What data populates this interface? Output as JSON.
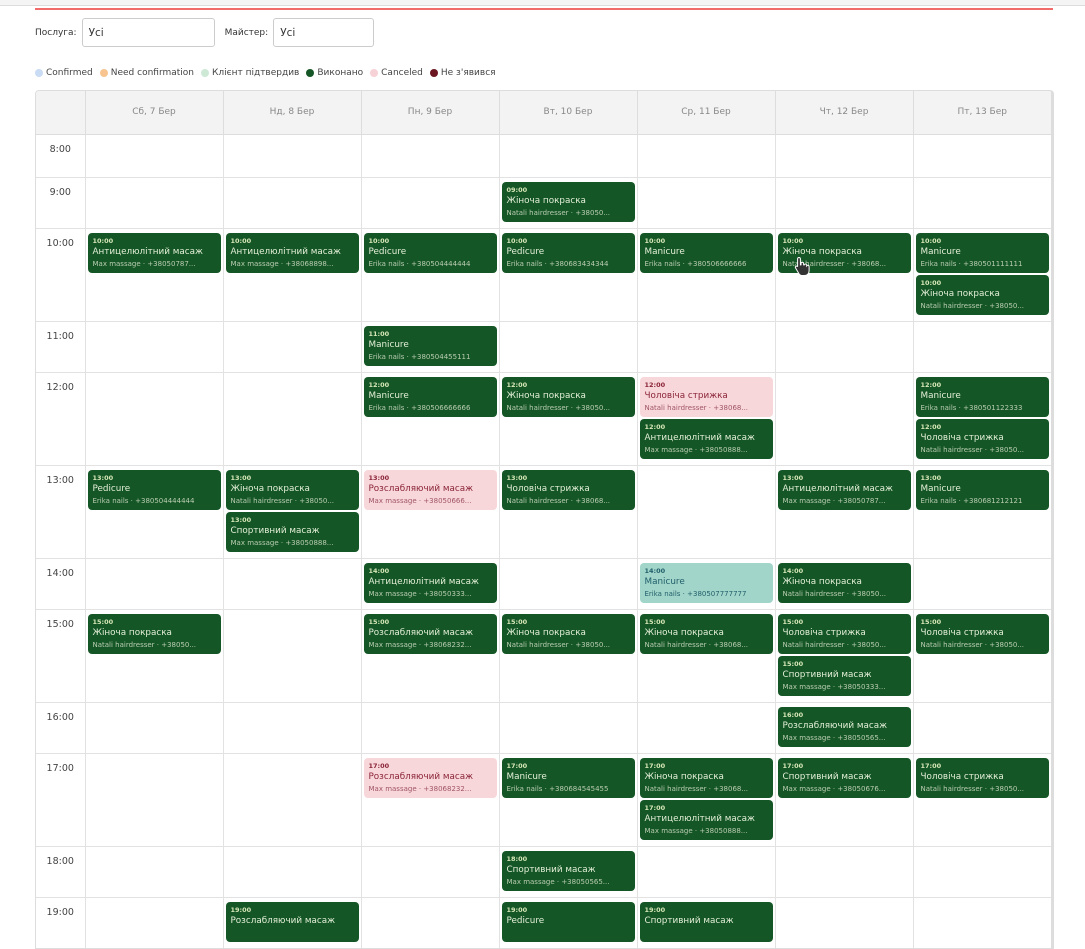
{
  "filters": {
    "service_label": "Послуга:",
    "service_value": "Усі",
    "master_label": "Майстер:",
    "master_value": "Усі"
  },
  "legend": [
    {
      "label": "Confirmed",
      "color": "#c9dcf3"
    },
    {
      "label": "Need confirmation",
      "color": "#f7c48f"
    },
    {
      "label": "Клієнт підтвердив",
      "color": "#cde9d6"
    },
    {
      "label": "Виконано",
      "color": "#155626"
    },
    {
      "label": "Canceled",
      "color": "#f6d1d6"
    },
    {
      "label": "Не з'явився",
      "color": "#6b1620"
    }
  ],
  "days": [
    "Сб, 7 Бер",
    "Нд, 8 Бер",
    "Пн, 9 Бер",
    "Вт, 10 Бер",
    "Ср, 11 Бер",
    "Чт, 12 Бер",
    "Пт, 13 Бер"
  ],
  "rows": [
    {
      "time": "8:00",
      "cells": [
        [],
        [],
        [],
        [],
        [],
        [],
        []
      ]
    },
    {
      "time": "9:00",
      "cells": [
        [],
        [],
        [],
        [
          {
            "time": "09:00",
            "title": "Жіноча покраска",
            "sub": "Natali hairdresser · +38050...",
            "status": "done"
          }
        ],
        [],
        [],
        []
      ]
    },
    {
      "time": "10:00",
      "cells": [
        [
          {
            "time": "10:00",
            "title": "Антицелюлітний масаж",
            "sub": "Max massage · +38050787...",
            "status": "done"
          }
        ],
        [
          {
            "time": "10:00",
            "title": "Антицелюлітний масаж",
            "sub": "Max massage · +38068898...",
            "status": "done"
          }
        ],
        [
          {
            "time": "10:00",
            "title": "Pedicure",
            "sub": "Erika nails · +380504444444",
            "status": "done"
          }
        ],
        [
          {
            "time": "10:00",
            "title": "Pedicure",
            "sub": "Erika nails · +380683434344",
            "status": "done"
          }
        ],
        [
          {
            "time": "10:00",
            "title": "Manicure",
            "sub": "Erika nails · +380506666666",
            "status": "done"
          }
        ],
        [
          {
            "time": "10:00",
            "title": "Жіноча покраска",
            "sub": "Natali hairdresser · +38068...",
            "status": "done"
          }
        ],
        [
          {
            "time": "10:00",
            "title": "Manicure",
            "sub": "Erika nails · +380501111111",
            "status": "done"
          },
          {
            "time": "10:00",
            "title": "Жіноча покраска",
            "sub": "Natali hairdresser · +38050...",
            "status": "done"
          }
        ]
      ]
    },
    {
      "time": "11:00",
      "cells": [
        [],
        [],
        [
          {
            "time": "11:00",
            "title": "Manicure",
            "sub": "Erika nails · +380504455111",
            "status": "done"
          }
        ],
        [],
        [],
        [],
        []
      ]
    },
    {
      "time": "12:00",
      "cells": [
        [],
        [],
        [
          {
            "time": "12:00",
            "title": "Manicure",
            "sub": "Erika nails · +380506666666",
            "status": "done"
          }
        ],
        [
          {
            "time": "12:00",
            "title": "Жіноча покраска",
            "sub": "Natali hairdresser · +38050...",
            "status": "done"
          }
        ],
        [
          {
            "time": "12:00",
            "title": "Чоловіча стрижка",
            "sub": "Natali hairdresser · +38068...",
            "status": "canceled"
          },
          {
            "time": "12:00",
            "title": "Антицелюлітний масаж",
            "sub": "Max massage · +38050888...",
            "status": "done"
          }
        ],
        [],
        [
          {
            "time": "12:00",
            "title": "Manicure",
            "sub": "Erika nails · +380501122333",
            "status": "done"
          },
          {
            "time": "12:00",
            "title": "Чоловіча стрижка",
            "sub": "Natali hairdresser · +38050...",
            "status": "done"
          }
        ]
      ]
    },
    {
      "time": "13:00",
      "cells": [
        [
          {
            "time": "13:00",
            "title": "Pedicure",
            "sub": "Erika nails · +380504444444",
            "status": "done"
          }
        ],
        [
          {
            "time": "13:00",
            "title": "Жіноча покраска",
            "sub": "Natali hairdresser · +38050...",
            "status": "done"
          },
          {
            "time": "13:00",
            "title": "Спортивний масаж",
            "sub": "Max massage · +38050888...",
            "status": "done"
          }
        ],
        [
          {
            "time": "13:00",
            "title": "Розслабляючий масаж",
            "sub": "Max massage · +38050666...",
            "status": "canceled"
          }
        ],
        [
          {
            "time": "13:00",
            "title": "Чоловіча стрижка",
            "sub": "Natali hairdresser · +38068...",
            "status": "done"
          }
        ],
        [],
        [
          {
            "time": "13:00",
            "title": "Антицелюлітний масаж",
            "sub": "Max massage · +38050787...",
            "status": "done"
          }
        ],
        [
          {
            "time": "13:00",
            "title": "Manicure",
            "sub": "Erika nails · +380681212121",
            "status": "done"
          }
        ]
      ]
    },
    {
      "time": "14:00",
      "cells": [
        [],
        [],
        [
          {
            "time": "14:00",
            "title": "Антицелюлітний масаж",
            "sub": "Max massage · +38050333...",
            "status": "done"
          }
        ],
        [],
        [
          {
            "time": "14:00",
            "title": "Manicure",
            "sub": "Erika nails · +380507777777",
            "status": "confirmed"
          }
        ],
        [
          {
            "time": "14:00",
            "title": "Жіноча покраска",
            "sub": "Natali hairdresser · +38050...",
            "status": "done"
          }
        ],
        []
      ]
    },
    {
      "time": "15:00",
      "cells": [
        [
          {
            "time": "15:00",
            "title": "Жіноча покраска",
            "sub": "Natali hairdresser · +38050...",
            "status": "done"
          }
        ],
        [],
        [
          {
            "time": "15:00",
            "title": "Розслабляючий масаж",
            "sub": "Max massage · +38068232...",
            "status": "done"
          }
        ],
        [
          {
            "time": "15:00",
            "title": "Жіноча покраска",
            "sub": "Natali hairdresser · +38050...",
            "status": "done"
          }
        ],
        [
          {
            "time": "15:00",
            "title": "Жіноча покраска",
            "sub": "Natali hairdresser · +38068...",
            "status": "done"
          }
        ],
        [
          {
            "time": "15:00",
            "title": "Чоловіча стрижка",
            "sub": "Natali hairdresser · +38050...",
            "status": "done"
          },
          {
            "time": "15:00",
            "title": "Спортивний масаж",
            "sub": "Max massage · +38050333...",
            "status": "done"
          }
        ],
        [
          {
            "time": "15:00",
            "title": "Чоловіча стрижка",
            "sub": "Natali hairdresser · +38050...",
            "status": "done"
          }
        ]
      ]
    },
    {
      "time": "16:00",
      "cells": [
        [],
        [],
        [],
        [],
        [],
        [
          {
            "time": "16:00",
            "title": "Розслабляючий масаж",
            "sub": "Max massage · +38050565...",
            "status": "done"
          }
        ],
        []
      ]
    },
    {
      "time": "17:00",
      "cells": [
        [],
        [],
        [
          {
            "time": "17:00",
            "title": "Розслабляючий масаж",
            "sub": "Max massage · +38068232...",
            "status": "canceled"
          }
        ],
        [
          {
            "time": "17:00",
            "title": "Manicure",
            "sub": "Erika nails · +380684545455",
            "status": "done"
          }
        ],
        [
          {
            "time": "17:00",
            "title": "Жіноча покраска",
            "sub": "Natali hairdresser · +38068...",
            "status": "done"
          },
          {
            "time": "17:00",
            "title": "Антицелюлітний масаж",
            "sub": "Max massage · +38050888...",
            "status": "done"
          }
        ],
        [
          {
            "time": "17:00",
            "title": "Спортивний масаж",
            "sub": "Max massage · +38050676...",
            "status": "done"
          }
        ],
        [
          {
            "time": "17:00",
            "title": "Чоловіча стрижка",
            "sub": "Natali hairdresser · +38050...",
            "status": "done"
          }
        ]
      ]
    },
    {
      "time": "18:00",
      "cells": [
        [],
        [],
        [],
        [
          {
            "time": "18:00",
            "title": "Спортивний масаж",
            "sub": "Max massage · +38050565...",
            "status": "done"
          }
        ],
        [],
        [],
        []
      ]
    },
    {
      "time": "19:00",
      "cells": [
        [],
        [
          {
            "time": "19:00",
            "title": "Розслабляючий масаж",
            "status": "done"
          }
        ],
        [],
        [
          {
            "time": "19:00",
            "title": "Pedicure",
            "status": "done"
          }
        ],
        [
          {
            "time": "19:00",
            "title": "Спортивний масаж",
            "status": "done"
          }
        ],
        [],
        []
      ]
    }
  ]
}
